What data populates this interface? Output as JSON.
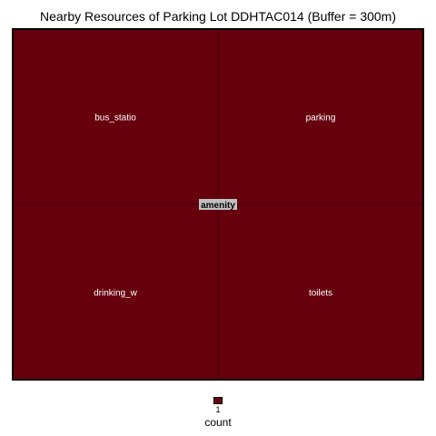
{
  "chart_data": {
    "type": "treemap",
    "title": "Nearby Resources of Parking Lot DDHTAC014 (Buffer = 300m)",
    "group": "amenity",
    "categories": [
      "bus_statio",
      "parking",
      "drinking_w",
      "toilets"
    ],
    "values": [
      1,
      1,
      1,
      1
    ],
    "legend": {
      "title": "count",
      "ticks": [
        "1"
      ]
    },
    "colors": {
      "fill": "#67000d",
      "border": "#000000",
      "label_bg": "#c0c0c0"
    }
  }
}
